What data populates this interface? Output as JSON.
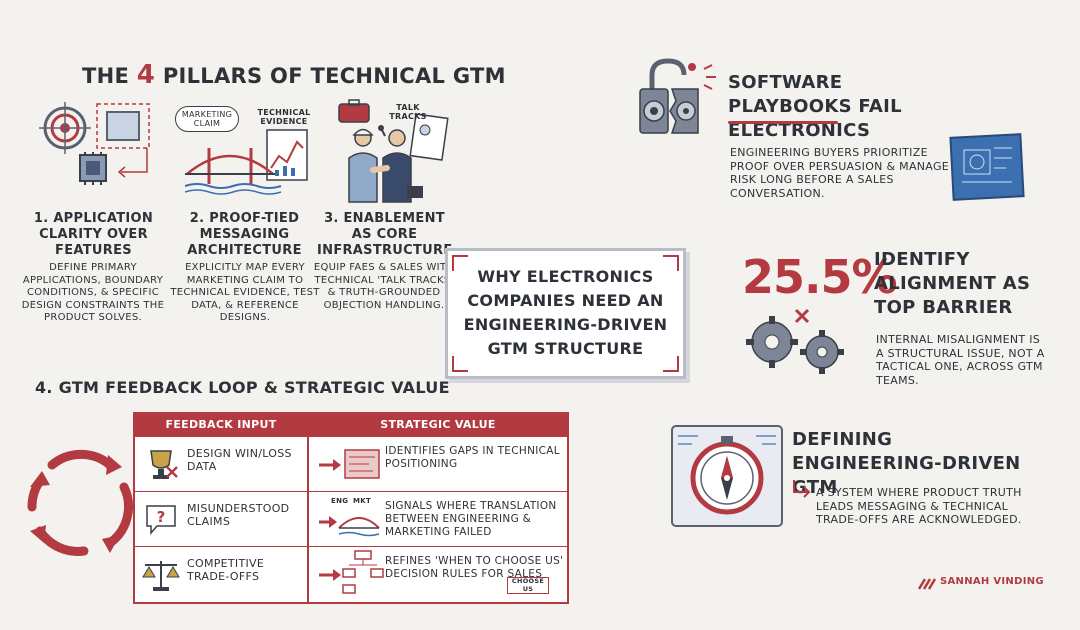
{
  "main_title_pre": "THE",
  "main_title_num": "4",
  "main_title_post": "PILLARS OF TECHNICAL GTM",
  "pillars": [
    {
      "title": "1. APPLICATION CLARITY OVER FEATURES",
      "desc": "DEFINE PRIMARY APPLICATIONS, BOUNDARY CONDITIONS, & SPECIFIC DESIGN CONSTRAINTS THE PRODUCT SOLVES."
    },
    {
      "title": "2. PROOF-TIED MESSAGING ARCHITECTURE",
      "desc": "EXPLICITLY MAP EVERY MARKETING CLAIM TO TECHNICAL EVIDENCE, TEST DATA, & REFERENCE DESIGNS."
    },
    {
      "title": "3. ENABLEMENT AS CORE INFRASTRUCTURE",
      "desc": "EQUIP FAES & SALES WITH TECHNICAL 'TALK TRACKS' & TRUTH-GROUNDED OBJECTION HANDLING."
    }
  ],
  "icon_labels": {
    "marketing_claim": "MARKETING CLAIM",
    "technical_evidence": "TECHNICAL EVIDENCE",
    "talk_tracks": "TALK TRACKS"
  },
  "center_box": "WHY ELECTRONICS COMPANIES NEED AN ENGINEERING-DRIVEN GTM STRUCTURE",
  "feedback_title": "4. GTM FEEDBACK LOOP & STRATEGIC VALUE",
  "table": {
    "headers": [
      "FEEDBACK INPUT",
      "STRATEGIC VALUE"
    ],
    "rows": [
      {
        "input": "DESIGN WIN/LOSS DATA",
        "value": "IDENTIFIES GAPS IN TECHNICAL POSITIONING"
      },
      {
        "input": "MISUNDERSTOOD CLAIMS",
        "value": "SIGNALS WHERE TRANSLATION BETWEEN ENGINEERING & MARKETING FAILED"
      },
      {
        "input": "COMPETITIVE TRADE-OFFS",
        "value": "REFINES 'WHEN TO CHOOSE US' DECISION RULES FOR SALES"
      }
    ],
    "eng_label": "ENG",
    "mkt_label": "MKT",
    "choose_label": "CHOOSE US"
  },
  "right": {
    "playbook_title": "SOFTWARE PLAYBOOKS FAIL ELECTRONICS",
    "playbook_body": "ENGINEERING BUYERS PRIORITIZE PROOF OVER PERSUASION & MANAGE RISK LONG BEFORE A SALES CONVERSATION.",
    "stat_value": "25.5%",
    "stat_label": "IDENTIFY ALIGNMENT AS TOP BARRIER",
    "stat_body": "INTERNAL MISALIGNMENT IS A STRUCTURAL ISSUE, NOT A TACTICAL ONE, ACROSS GTM TEAMS.",
    "defining_title": "DEFINING ENGINEERING-DRIVEN GTM",
    "defining_body": "A SYSTEM WHERE PRODUCT TRUTH LEADS MESSAGING & TECHNICAL TRADE-OFFS ARE ACKNOWLEDGED."
  },
  "brand": "SANNAH VINDING",
  "colors": {
    "accent": "#b33a40",
    "ink": "#2d3138",
    "blue": "#3b6fb0",
    "steel": "#5a6270"
  }
}
